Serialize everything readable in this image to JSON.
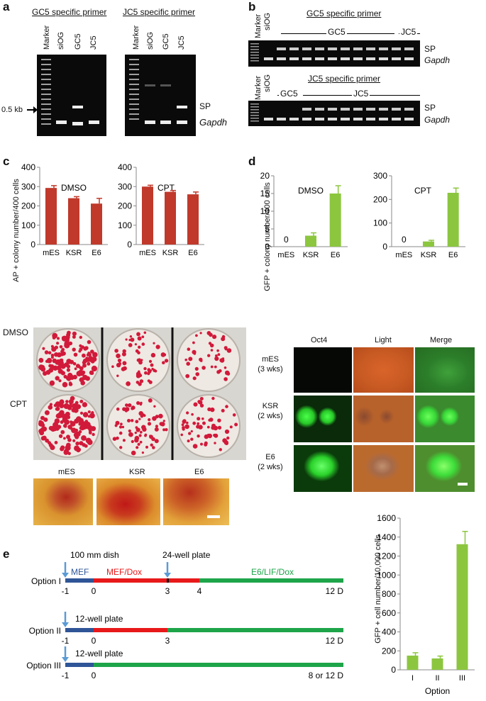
{
  "panels": {
    "a": {
      "label": "a",
      "left_title": "GC5 specific primer",
      "right_title": "JC5 specific primer",
      "left_lanes": [
        "Marker",
        "siOG",
        "GC5",
        "JC5"
      ],
      "right_lanes": [
        "Marker",
        "siOG",
        "GC5",
        "JC5"
      ],
      "size_marker": "0.5 kb",
      "band_sp": "SP",
      "band_gapdh": "Gapdh"
    },
    "b": {
      "label": "b",
      "top_title": "GC5 specific primer",
      "bottom_title": "JC5 specific primer",
      "lanes_marker": "Marker",
      "lanes_siog": "siOG",
      "top_group1": "GC5",
      "top_group2": "JC5",
      "bottom_group1": "GC5",
      "bottom_group2": "JC5",
      "band_sp": "SP",
      "band_gapdh": "Gapdh"
    },
    "c": {
      "label": "c",
      "ylabel": "AP + colony number/400 cells",
      "plate_rows": [
        "DMSO",
        "CPT"
      ],
      "colony_labels": [
        "mES",
        "KSR",
        "E6"
      ]
    },
    "d": {
      "label": "d",
      "ylabel": "GFP + colony number/400 cells",
      "img_cols": [
        "Oct4",
        "Light",
        "Merge"
      ],
      "img_rows": [
        {
          "name": "mES",
          "time": "(3 wks)"
        },
        {
          "name": "KSR",
          "time": "(2 wks)"
        },
        {
          "name": "E6",
          "time": "(2 wks)"
        }
      ]
    },
    "e": {
      "label": "e",
      "annot_100mm": "100 mm dish",
      "annot_24well": "24-well plate",
      "annot_12well_a": "12-well plate",
      "annot_12well_b": "12-well plate",
      "seg_mef": "MEF",
      "seg_mefdox": "MEF/Dox",
      "seg_e6": "E6/LIF/Dox",
      "options": [
        {
          "name": "Option I",
          "ticks": [
            "-1",
            "0",
            "3",
            "4"
          ],
          "end": "12 D"
        },
        {
          "name": "Option II",
          "ticks": [
            "-1",
            "0",
            "3"
          ],
          "end": "12 D"
        },
        {
          "name": "Option III",
          "ticks": [
            "-1",
            "0"
          ],
          "end": "8 or 12 D"
        }
      ]
    }
  },
  "colors": {
    "red_bar": "#c0392b",
    "green_bar": "#8cc63f",
    "mef_blue": "#2f5597",
    "dox_red": "#e8191a",
    "e6_green": "#1ea54a",
    "arrow_blue": "#5b9bd5"
  },
  "chart_data": [
    {
      "type": "bar",
      "title": "DMSO",
      "categories": [
        "mES",
        "KSR",
        "E6"
      ],
      "values": [
        293,
        240,
        212
      ],
      "errors": [
        12,
        8,
        27
      ],
      "ylim": [
        0,
        400
      ],
      "yticks": [
        "0",
        "100",
        "200",
        "300",
        "400"
      ],
      "ylabel": "AP + colony number/400 cells"
    },
    {
      "type": "bar",
      "title": "CPT",
      "categories": [
        "mES",
        "KSR",
        "E6"
      ],
      "values": [
        300,
        273,
        260
      ],
      "errors": [
        7,
        7,
        12
      ],
      "ylim": [
        0,
        400
      ],
      "yticks": [
        "0",
        "100",
        "200",
        "300",
        "400"
      ]
    },
    {
      "type": "bar",
      "title": "DMSO",
      "categories": [
        "mES",
        "KSR",
        "E6"
      ],
      "values": [
        0,
        3.1,
        15.0
      ],
      "errors": [
        0,
        0.8,
        2.2
      ],
      "value_labels": [
        "0",
        "",
        ""
      ],
      "ylim": [
        0,
        20
      ],
      "yticks": [
        "0",
        "5",
        "10",
        "15",
        "20"
      ],
      "ylabel": "GFP + colony number/400 cells"
    },
    {
      "type": "bar",
      "title": "CPT",
      "categories": [
        "mES",
        "KSR",
        "E6"
      ],
      "values": [
        0,
        22,
        228
      ],
      "errors": [
        0,
        5,
        20
      ],
      "value_labels": [
        "0",
        "",
        ""
      ],
      "ylim": [
        0,
        300
      ],
      "yticks": [
        "0",
        "100",
        "200",
        "300"
      ]
    },
    {
      "type": "bar",
      "title": "",
      "categories": [
        "I",
        "II",
        "III"
      ],
      "values": [
        150,
        120,
        1325
      ],
      "errors": [
        30,
        25,
        135
      ],
      "ylim": [
        0,
        1600
      ],
      "yticks": [
        "0",
        "200",
        "400",
        "600",
        "800",
        "1000",
        "1200",
        "1400",
        "1600"
      ],
      "xlabel": "Option",
      "ylabel": "GFP + cell number/10,000 cells"
    }
  ]
}
